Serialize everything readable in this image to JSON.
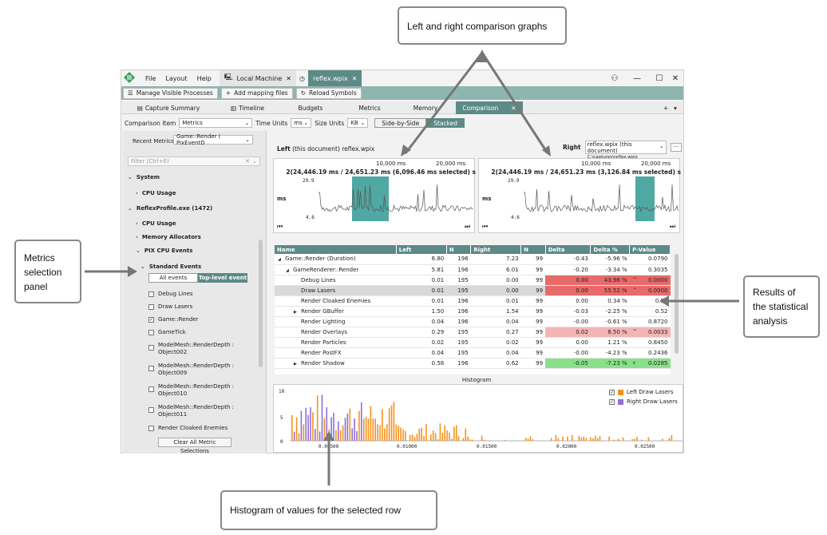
{
  "callouts": {
    "top": "Left and right comparison graphs",
    "left": [
      "Metrics",
      "selection",
      "panel"
    ],
    "right": [
      "Results of",
      "the statistical",
      "analysis"
    ],
    "bottom": "Histogram of values for the selected row"
  },
  "titlebar": {
    "menus": [
      "File",
      "Layout",
      "Help"
    ],
    "tab_local": "Local Machine",
    "tab_file": "reflex.wpix",
    "close_glyph": "✕",
    "min_glyph": "—",
    "max_glyph": "☐"
  },
  "toolbar": {
    "manage": "Manage Visible Processes",
    "add_mapping": "Add mapping files",
    "reload": "Reload Symbols"
  },
  "view_tabs": [
    "Capture Summary",
    "Timeline",
    "Budgets",
    "Metrics",
    "Memory",
    "Comparison"
  ],
  "options": {
    "comparison_label": "Comparison Item",
    "comparison_value": "Metrics",
    "time_units_label": "Time Units",
    "time_units_value": "ms",
    "size_units_label": "Size Units",
    "size_units_value": "KB",
    "side_by_side": "Side-by-Side",
    "stacked": "Stacked"
  },
  "left_panel": {
    "recent_label": "Recent Metrics",
    "recent_value": "Game::Render ( PixEventD",
    "filter_placeholder": "Filter (Ctrl+E)",
    "system": "System",
    "cpu_usage_1": "CPU Usage",
    "process": "ReflexProfile.exe (1472)",
    "cpu_usage_2": "CPU Usage",
    "memory_alloc": "Memory Allocators",
    "pix_cpu": "PIX CPU Events",
    "standard_events": "Standard Events",
    "all_events": "All events",
    "top_level": "Top-level event",
    "events": [
      "Debug Lines",
      "Draw Lasers",
      "Game::Render",
      "GameTick"
    ],
    "events_checked": [
      false,
      false,
      true,
      false
    ],
    "model_events": [
      [
        "ModelMesh::RenderDepth :",
        "Object002"
      ],
      [
        "ModelMesh::RenderDepth :",
        "Object009"
      ],
      [
        "ModelMesh::RenderDepth :",
        "Object010"
      ],
      [
        "ModelMesh::RenderDepth :",
        "Object011"
      ]
    ],
    "render_cloaked": "Render Cloaked Enemies",
    "clear_all": "Clear All Metric Selections"
  },
  "graphs": {
    "left_label": "Left",
    "left_doc": "(this document)  reflex.wpix",
    "right_label": "Right",
    "right_doc": "reflex.wpix (this document)",
    "right_path": "C:\\captures\\reflex.wpix",
    "more": "···",
    "tick_10": "10,000 ms",
    "tick_20": "20,000 ms",
    "left_range": "2(24,446.19 ms / 24,651.23 ms (6,096.46 ms selected) s",
    "right_range": "2(24,446.19 ms / 24,651.23 ms (3,126.84 ms selected) s",
    "y_max": "29.9",
    "y_min": "4.6",
    "unit": "ms"
  },
  "table": {
    "headers": [
      "Name",
      "Left",
      "N",
      "Right",
      "N",
      "Delta",
      "Delta %",
      "P-Value"
    ],
    "rows": [
      {
        "name": "Game::Render (Duration)",
        "indent": 0,
        "exp": "◢",
        "left": "6.80",
        "n1": "196",
        "right": "7.23",
        "n2": "99",
        "delta": "-0.43",
        "dp": "-5.96 %",
        "flag": "",
        "p": "0.0790",
        "hl": ""
      },
      {
        "name": "GameRenderer::Render",
        "indent": 1,
        "exp": "◢",
        "left": "5.81",
        "n1": "196",
        "right": "6.01",
        "n2": "99",
        "delta": "-0.20",
        "dp": "-3.34 %",
        "flag": "",
        "p": "0.3035",
        "hl": ""
      },
      {
        "name": "Debug Lines",
        "indent": 2,
        "exp": "",
        "left": "0.01",
        "n1": "195",
        "right": "0.00",
        "n2": "99",
        "delta": "0.00",
        "dp": "43.96 %",
        "flag": "^",
        "p": "0.0000",
        "hl": "red"
      },
      {
        "name": "Draw Lasers",
        "indent": 2,
        "exp": "",
        "left": "0.01",
        "n1": "195",
        "right": "0.00",
        "n2": "99",
        "delta": "0.00",
        "dp": "55.52 %",
        "flag": "^",
        "p": "0.0000",
        "hl": "red",
        "sel": true
      },
      {
        "name": "Render Cloaked Enemies",
        "indent": 2,
        "exp": "",
        "left": "0.01",
        "n1": "196",
        "right": "0.01",
        "n2": "99",
        "delta": "0.00",
        "dp": "0.34 %",
        "flag": "",
        "p": "0.95",
        "hl": ""
      },
      {
        "name": "Render GBuffer",
        "indent": 2,
        "exp": "▶",
        "left": "1.50",
        "n1": "196",
        "right": "1.54",
        "n2": "99",
        "delta": "-0.03",
        "dp": "-2.25 %",
        "flag": "",
        "p": "0.52",
        "hl": ""
      },
      {
        "name": "Render Lighting",
        "indent": 2,
        "exp": "",
        "left": "0.04",
        "n1": "196",
        "right": "0.04",
        "n2": "99",
        "delta": "-0.00",
        "dp": "-0.61 %",
        "flag": "",
        "p": "0.8720",
        "hl": ""
      },
      {
        "name": "Render Overlays",
        "indent": 2,
        "exp": "",
        "left": "0.29",
        "n1": "195",
        "right": "0.27",
        "n2": "99",
        "delta": "0.02",
        "dp": "8.50 %",
        "flag": "^",
        "p": "0.0033",
        "hl": "pink"
      },
      {
        "name": "Render Particles",
        "indent": 2,
        "exp": "",
        "left": "0.02",
        "n1": "195",
        "right": "0.02",
        "n2": "99",
        "delta": "0.00",
        "dp": "1.21 %",
        "flag": "",
        "p": "0.8450",
        "hl": ""
      },
      {
        "name": "Render PostFX",
        "indent": 2,
        "exp": "",
        "left": "0.04",
        "n1": "195",
        "right": "0.04",
        "n2": "99",
        "delta": "-0.00",
        "dp": "-4.23 %",
        "flag": "",
        "p": "0.2436",
        "hl": ""
      },
      {
        "name": "Render Shadow",
        "indent": 2,
        "exp": "▶",
        "left": "0.58",
        "n1": "196",
        "right": "0.62",
        "n2": "99",
        "delta": "-0.05",
        "dp": "-7.23 %",
        "flag": "v",
        "p": "0.0285",
        "hl": "green"
      }
    ]
  },
  "histogram": {
    "title": "Histogram",
    "legend_left": "Left  Draw Lasers",
    "legend_right": "Right  Draw Lasers",
    "left_color": "#f5921e",
    "right_color": "#8e6fd6",
    "y_ticks": [
      "10",
      "5",
      "0"
    ],
    "x_ticks": [
      "0.00500",
      "0.01000",
      "0.01500",
      "0.02000",
      "0.02500"
    ]
  },
  "colors": {
    "accent": "#5c8a86",
    "selection": "#4fa8a3"
  }
}
